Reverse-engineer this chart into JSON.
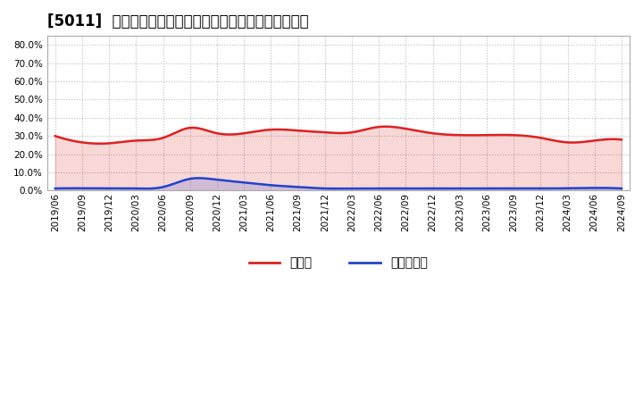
{
  "title": "[5011]  現預金、有利子負債の総資産に対する比率の推移",
  "x_labels": [
    "2019/06",
    "2019/09",
    "2019/12",
    "2020/03",
    "2020/06",
    "2020/09",
    "2020/12",
    "2021/03",
    "2021/06",
    "2021/09",
    "2021/12",
    "2022/03",
    "2022/06",
    "2022/09",
    "2022/12",
    "2023/03",
    "2023/06",
    "2023/09",
    "2023/12",
    "2024/03",
    "2024/06",
    "2024/09"
  ],
  "cash_values": [
    0.3,
    0.265,
    0.26,
    0.275,
    0.29,
    0.345,
    0.315,
    0.315,
    0.335,
    0.33,
    0.32,
    0.32,
    0.35,
    0.34,
    0.315,
    0.305,
    0.305,
    0.305,
    0.29,
    0.265,
    0.275,
    0.28
  ],
  "debt_values": [
    0.012,
    0.013,
    0.012,
    0.012,
    0.02,
    0.065,
    0.06,
    0.045,
    0.03,
    0.02,
    0.012,
    0.012,
    0.012,
    0.012,
    0.012,
    0.012,
    0.012,
    0.012,
    0.012,
    0.013,
    0.015,
    0.012
  ],
  "cash_color": "#dd2222",
  "debt_color": "#2244cc",
  "ylim": [
    0.0,
    0.85
  ],
  "yticks": [
    0.0,
    0.1,
    0.2,
    0.3,
    0.4,
    0.5,
    0.6,
    0.7,
    0.8
  ],
  "legend_cash": "現預金",
  "legend_debt": "有利子負債",
  "bg_color": "#ffffff",
  "grid_color": "#bbbbbb",
  "title_fontsize": 12,
  "label_fontsize": 7.5,
  "legend_fontsize": 10
}
